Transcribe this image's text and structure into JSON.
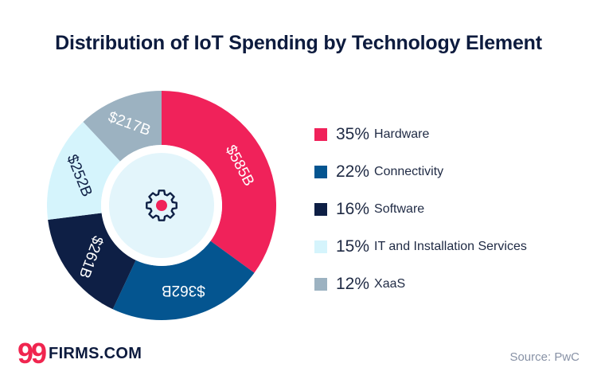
{
  "colors": {
    "hardware": "#f0225a",
    "connectivity": "#045590",
    "software": "#0e1f45",
    "it_services": "#d5f4fc",
    "xaas": "#9cb2c1",
    "center": "#e3f5fb",
    "title": "#0d1b3e",
    "logo_accent": "#f0254f"
  },
  "center_icon": "gear-icon",
  "logo": {
    "mark": "99",
    "text": "FIRMS.COM"
  },
  "source": "Source: PwC",
  "chart_data": {
    "type": "pie",
    "title": "Distribution of IoT Spending by Technology Element",
    "slices": [
      {
        "name": "Hardware",
        "percent": 35,
        "pct_label": "35%",
        "value_label": "$585B",
        "color": "#f0225a"
      },
      {
        "name": "Connectivity",
        "percent": 22,
        "pct_label": "22%",
        "value_label": "$362B",
        "color": "#045590"
      },
      {
        "name": "Software",
        "percent": 16,
        "pct_label": "16%",
        "value_label": "$261B",
        "color": "#0e1f45"
      },
      {
        "name": "IT and Installation Services",
        "percent": 15,
        "pct_label": "15%",
        "value_label": "$252B",
        "color": "#d5f4fc"
      },
      {
        "name": "XaaS",
        "percent": 12,
        "pct_label": "12%",
        "value_label": "$217B",
        "color": "#9cb2c1"
      }
    ],
    "legend_position": "right"
  }
}
